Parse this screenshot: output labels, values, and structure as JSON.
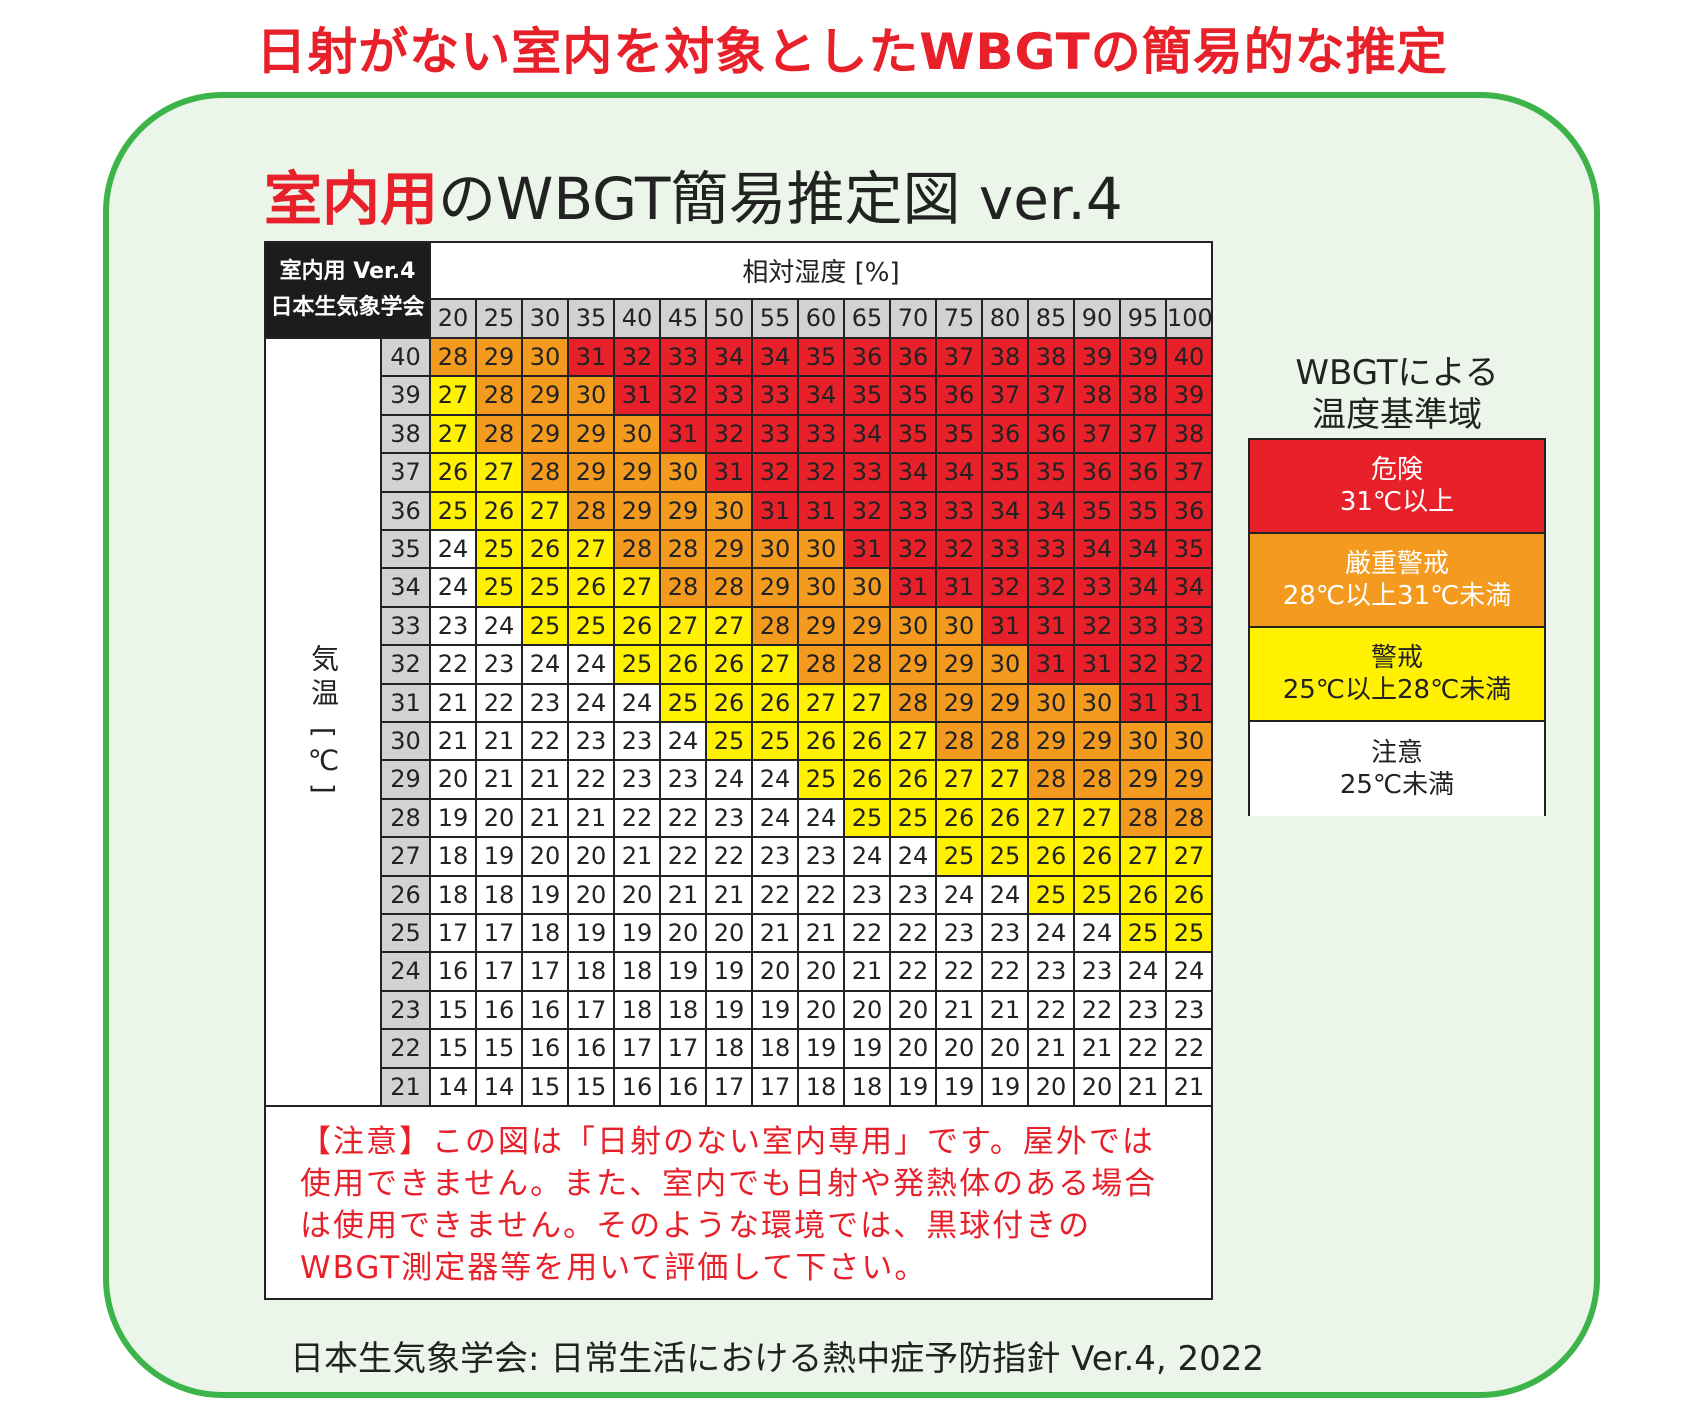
{
  "main_title": "日射がない室内を対象としたWBGTの簡易的な推定",
  "panel_title": {
    "accent": "室内用",
    "rest": "のWBGT簡易推定図 ver.4"
  },
  "source": "日本生気象学会: 日常生活における熱中症予防指針 Ver.4, 2022",
  "caution": "【注意】この図は「日射のない室内専用」です。屋外では使用できません。また、室内でも日射や発熱体のある場合は使用できません。そのような環境では、黒球付きのWBGT測定器等を用いて評価して下さい。",
  "colors": {
    "danger": "#e8202a",
    "severe": "#f39a1f",
    "warning": "#fff100",
    "caution": "#ffffff",
    "header_gray": "#d2d2d2",
    "corner_black": "#1c1c1c",
    "panel_border": "#3cb44a",
    "panel_fill": "#ecf5ea"
  },
  "legend": {
    "title": "WBGTによる\n温度基準域",
    "items": [
      {
        "name": "危険",
        "range": "31℃以上",
        "color": "#e8202a",
        "text_color": "#ffffff"
      },
      {
        "name": "厳重警戒",
        "range": "28℃以上31℃未満",
        "color": "#f39a1f",
        "text_color": "#ffffff"
      },
      {
        "name": "警戒",
        "range": "25℃以上28℃未満",
        "color": "#fff100",
        "text_color": "#222222"
      },
      {
        "name": "注意",
        "range": "25℃未満",
        "color": "#ffffff",
        "text_color": "#222222"
      }
    ]
  },
  "chart_data": {
    "type": "heatmap",
    "title": "室内用のWBGT簡易推定図 ver.4",
    "corner_label": [
      "室内用 Ver.4",
      "日本生気象学会"
    ],
    "xlabel": "相対湿度 [%]",
    "ylabel": "気温 [℃]",
    "x": [
      20,
      25,
      30,
      35,
      40,
      45,
      50,
      55,
      60,
      65,
      70,
      75,
      80,
      85,
      90,
      95,
      100
    ],
    "y": [
      40,
      39,
      38,
      37,
      36,
      35,
      34,
      33,
      32,
      31,
      30,
      29,
      28,
      27,
      26,
      25,
      24,
      23,
      22,
      21
    ],
    "values": [
      [
        28,
        29,
        30,
        31,
        32,
        33,
        34,
        34,
        35,
        36,
        36,
        37,
        38,
        38,
        39,
        39,
        40
      ],
      [
        27,
        28,
        29,
        30,
        31,
        32,
        33,
        33,
        34,
        35,
        35,
        36,
        37,
        37,
        38,
        38,
        39
      ],
      [
        27,
        28,
        29,
        29,
        30,
        31,
        32,
        33,
        33,
        34,
        35,
        35,
        36,
        36,
        37,
        37,
        38
      ],
      [
        26,
        27,
        28,
        29,
        29,
        30,
        31,
        32,
        32,
        33,
        34,
        34,
        35,
        35,
        36,
        36,
        37
      ],
      [
        25,
        26,
        27,
        28,
        29,
        29,
        30,
        31,
        31,
        32,
        33,
        33,
        34,
        34,
        35,
        35,
        36
      ],
      [
        24,
        25,
        26,
        27,
        28,
        28,
        29,
        30,
        30,
        31,
        32,
        32,
        33,
        33,
        34,
        34,
        35
      ],
      [
        24,
        25,
        25,
        26,
        27,
        28,
        28,
        29,
        30,
        30,
        31,
        31,
        32,
        32,
        33,
        34,
        34
      ],
      [
        23,
        24,
        25,
        25,
        26,
        27,
        27,
        28,
        29,
        29,
        30,
        30,
        31,
        31,
        32,
        33,
        33
      ],
      [
        22,
        23,
        24,
        24,
        25,
        26,
        26,
        27,
        28,
        28,
        29,
        29,
        30,
        31,
        31,
        32,
        32
      ],
      [
        21,
        22,
        23,
        24,
        24,
        25,
        26,
        26,
        27,
        27,
        28,
        29,
        29,
        30,
        30,
        31,
        31
      ],
      [
        21,
        21,
        22,
        23,
        23,
        24,
        25,
        25,
        26,
        26,
        27,
        28,
        28,
        29,
        29,
        30,
        30
      ],
      [
        20,
        21,
        21,
        22,
        23,
        23,
        24,
        24,
        25,
        26,
        26,
        27,
        27,
        28,
        28,
        29,
        29
      ],
      [
        19,
        20,
        21,
        21,
        22,
        22,
        23,
        24,
        24,
        25,
        25,
        26,
        26,
        27,
        27,
        28,
        28
      ],
      [
        18,
        19,
        20,
        20,
        21,
        22,
        22,
        23,
        23,
        24,
        24,
        25,
        25,
        26,
        26,
        27,
        27
      ],
      [
        18,
        18,
        19,
        20,
        20,
        21,
        21,
        22,
        22,
        23,
        23,
        24,
        24,
        25,
        25,
        26,
        26
      ],
      [
        17,
        17,
        18,
        19,
        19,
        20,
        20,
        21,
        21,
        22,
        22,
        23,
        23,
        24,
        24,
        25,
        25
      ],
      [
        16,
        17,
        17,
        18,
        18,
        19,
        19,
        20,
        20,
        21,
        22,
        22,
        22,
        23,
        23,
        24,
        24
      ],
      [
        15,
        16,
        16,
        17,
        18,
        18,
        19,
        19,
        20,
        20,
        20,
        21,
        21,
        22,
        22,
        23,
        23
      ],
      [
        15,
        15,
        16,
        16,
        17,
        17,
        18,
        18,
        19,
        19,
        20,
        20,
        20,
        21,
        21,
        22,
        22
      ],
      [
        14,
        14,
        15,
        15,
        16,
        16,
        17,
        17,
        18,
        18,
        19,
        19,
        19,
        20,
        20,
        21,
        21
      ]
    ],
    "thresholds": [
      {
        "min": 31,
        "level": "danger"
      },
      {
        "min": 28,
        "level": "severe"
      },
      {
        "min": 25,
        "level": "warning"
      },
      {
        "min": 0,
        "level": "caution"
      }
    ]
  }
}
